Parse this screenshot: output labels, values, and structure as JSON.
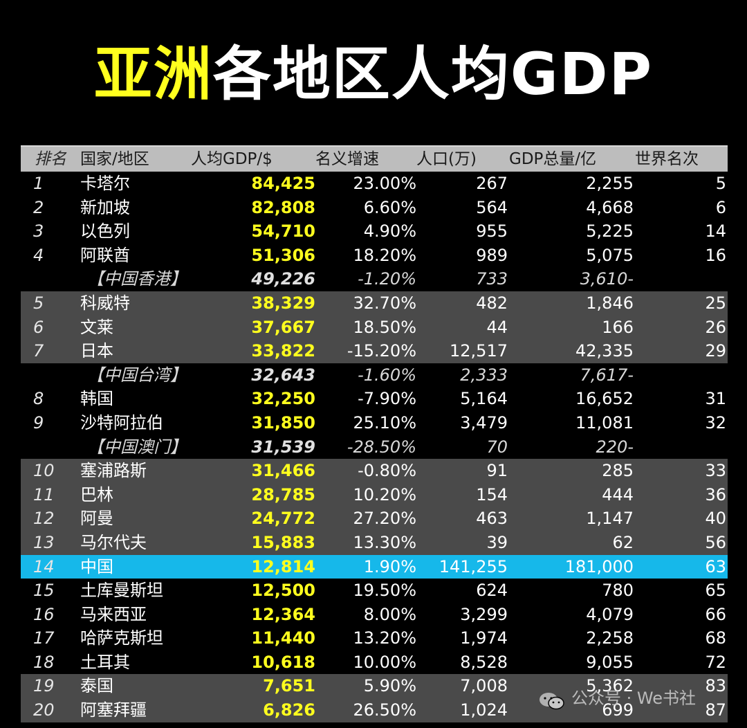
{
  "title": {
    "highlight": "亚洲",
    "rest": "各地区人均GDP"
  },
  "colors": {
    "highlight": "#ffff1e",
    "accent_row": "#16b8ea",
    "group_row": "#4a4a4a",
    "header": "#bdbdbd"
  },
  "watermark": {
    "text": "公众号 · We书社"
  },
  "chart_data": {
    "type": "table",
    "title": "亚洲各地区人均GDP",
    "columns": [
      "排名",
      "国家/地区",
      "人均GDP/$",
      "名义增速",
      "人口(万)",
      "GDP总量/亿",
      "世界名次"
    ],
    "rows": [
      [
        "1",
        "卡塔尔",
        "84,425",
        "23.00%",
        "267",
        "2,255",
        "5"
      ],
      [
        "2",
        "新加坡",
        "82,808",
        "6.60%",
        "564",
        "4,668",
        "6"
      ],
      [
        "3",
        "以色列",
        "54,710",
        "4.90%",
        "955",
        "5,225",
        "14"
      ],
      [
        "4",
        "阿联酋",
        "51,306",
        "18.20%",
        "989",
        "5,075",
        "16"
      ],
      [
        "",
        "【中国香港】",
        "49,226",
        "-1.20%",
        "733",
        "3,610-",
        ""
      ],
      [
        "5",
        "科威特",
        "38,329",
        "32.70%",
        "482",
        "1,846",
        "25"
      ],
      [
        "6",
        "文莱",
        "37,667",
        "18.50%",
        "44",
        "166",
        "26"
      ],
      [
        "7",
        "日本",
        "33,822",
        "-15.20%",
        "12,517",
        "42,335",
        "29"
      ],
      [
        "",
        "【中国台湾】",
        "32,643",
        "-1.60%",
        "2,333",
        "7,617-",
        ""
      ],
      [
        "8",
        "韩国",
        "32,250",
        "-7.90%",
        "5,164",
        "16,652",
        "31"
      ],
      [
        "9",
        "沙特阿拉伯",
        "31,850",
        "25.10%",
        "3,479",
        "11,081",
        "32"
      ],
      [
        "",
        "【中国澳门】",
        "31,539",
        "-28.50%",
        "70",
        "220-",
        ""
      ],
      [
        "10",
        "塞浦路斯",
        "31,466",
        "-0.80%",
        "91",
        "285",
        "33"
      ],
      [
        "11",
        "巴林",
        "28,785",
        "10.20%",
        "154",
        "444",
        "36"
      ],
      [
        "12",
        "阿曼",
        "24,772",
        "27.20%",
        "463",
        "1,147",
        "40"
      ],
      [
        "13",
        "马尔代夫",
        "15,883",
        "13.30%",
        "39",
        "62",
        "56"
      ],
      [
        "14",
        "中国",
        "12,814",
        "1.90%",
        "141,255",
        "181,000",
        "63"
      ],
      [
        "15",
        "土库曼斯坦",
        "12,500",
        "19.50%",
        "624",
        "780",
        "65"
      ],
      [
        "16",
        "马来西亚",
        "12,364",
        "8.00%",
        "3,299",
        "4,079",
        "66"
      ],
      [
        "17",
        "哈萨克斯坦",
        "11,440",
        "13.20%",
        "1,974",
        "2,258",
        "68"
      ],
      [
        "18",
        "土耳其",
        "10,618",
        "10.00%",
        "8,528",
        "9,055",
        "72"
      ],
      [
        "19",
        "泰国",
        "7,651",
        "5.90%",
        "7,008",
        "5,362",
        "83"
      ],
      [
        "20",
        "阿塞拜疆",
        "6,826",
        "26.50%",
        "1,024",
        "699",
        "87"
      ]
    ],
    "row_styles": [
      "plain",
      "plain",
      "plain",
      "plain",
      "sub",
      "group",
      "group",
      "group",
      "sub",
      "plain",
      "plain",
      "sub",
      "group",
      "group",
      "group",
      "group",
      "highlight",
      "plain",
      "plain",
      "plain",
      "plain",
      "group",
      "group"
    ]
  }
}
